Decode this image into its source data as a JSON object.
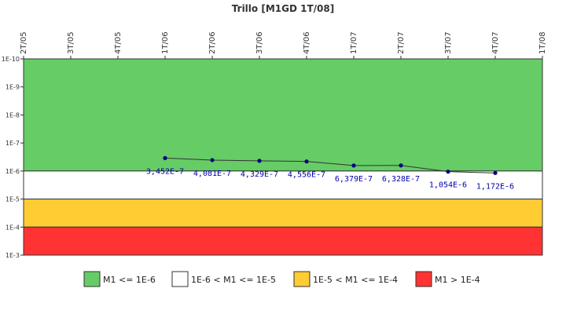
{
  "chart_data": {
    "type": "line",
    "title": "Trillo [M1GD 1T/08]",
    "xlabel": "",
    "ylabel": "",
    "categories": [
      "2T/05",
      "3T/05",
      "4T/05",
      "1T/06",
      "2T/06",
      "3T/06",
      "4T/06",
      "1T/07",
      "2T/07",
      "3T/07",
      "4T/07",
      "1T/08"
    ],
    "y_scale": "log",
    "ylim": [
      1e-10,
      0.001
    ],
    "y_ticks": [
      {
        "label": "1E-10",
        "value": 1e-10
      },
      {
        "label": "1E-9",
        "value": 1e-09
      },
      {
        "label": "1E-8",
        "value": 1e-08
      },
      {
        "label": "1E-7",
        "value": 1e-07
      },
      {
        "label": "1E-6",
        "value": 1e-06
      },
      {
        "label": "1E-5",
        "value": 1e-05
      },
      {
        "label": "1E-4",
        "value": 0.0001
      },
      {
        "label": "1E-3",
        "value": 0.001
      }
    ],
    "y_axis_inverted": true,
    "grid": false,
    "series": [
      {
        "color": "#000080",
        "points": [
          {
            "x": "1T/06",
            "y": 3.452e-07,
            "label": "3,452E-7"
          },
          {
            "x": "2T/06",
            "y": 4.081e-07,
            "label": "4,081E-7"
          },
          {
            "x": "3T/06",
            "y": 4.329e-07,
            "label": "4,329E-7"
          },
          {
            "x": "4T/06",
            "y": 4.556e-07,
            "label": "4,556E-7"
          },
          {
            "x": "1T/07",
            "y": 6.379e-07,
            "label": "6,379E-7"
          },
          {
            "x": "2T/07",
            "y": 6.328e-07,
            "label": "6,328E-7"
          },
          {
            "x": "3T/07",
            "y": 1.054e-06,
            "label": "1,054E-6"
          },
          {
            "x": "4T/07",
            "y": 1.172e-06,
            "label": "1,172E-6"
          }
        ]
      }
    ],
    "bands": [
      {
        "from": 1e-10,
        "to": 1e-06,
        "color": "#66cc66",
        "label": "M1 <= 1E-6"
      },
      {
        "from": 1e-06,
        "to": 1e-05,
        "color": "#ffffff",
        "label": "1E-6 < M1 <= 1E-5"
      },
      {
        "from": 1e-05,
        "to": 0.0001,
        "color": "#ffcc33",
        "label": "1E-5 < M1 <= 1E-4"
      },
      {
        "from": 0.0001,
        "to": 0.001,
        "color": "#ff3333",
        "label": "M1 > 1E-4"
      }
    ],
    "legend_position": "bottom"
  }
}
